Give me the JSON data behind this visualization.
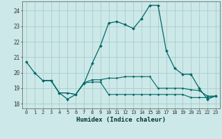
{
  "xlabel": "Humidex (Indice chaleur)",
  "ylabel": "",
  "background_color": "#cce8e8",
  "grid_color": "#aacccc",
  "line_color": "#006666",
  "xlim": [
    -0.5,
    23.5
  ],
  "ylim": [
    17.7,
    24.6
  ],
  "yticks": [
    18,
    19,
    20,
    21,
    22,
    23,
    24
  ],
  "xticks": [
    0,
    1,
    2,
    3,
    4,
    5,
    6,
    7,
    8,
    9,
    10,
    11,
    12,
    13,
    14,
    15,
    16,
    17,
    18,
    19,
    20,
    21,
    22,
    23
  ],
  "line1_x": [
    0,
    1,
    2,
    3,
    4,
    5,
    6,
    7,
    8,
    9,
    10,
    11,
    12,
    13,
    14,
    15,
    16,
    17,
    18,
    19,
    20,
    21,
    22,
    23
  ],
  "line1_y": [
    20.7,
    20.0,
    19.5,
    19.5,
    18.7,
    18.3,
    18.6,
    19.3,
    20.6,
    21.75,
    23.2,
    23.3,
    23.1,
    22.85,
    23.5,
    24.35,
    24.35,
    21.4,
    20.3,
    19.9,
    19.9,
    19.0,
    18.3,
    18.5
  ],
  "line2_x": [
    2,
    3,
    4,
    5,
    6,
    7,
    8,
    9,
    10,
    11,
    12,
    13,
    14,
    15,
    16,
    17,
    18,
    19,
    20,
    21,
    22,
    23
  ],
  "line2_y": [
    19.5,
    19.5,
    18.7,
    18.7,
    18.6,
    19.35,
    19.55,
    19.55,
    19.65,
    19.65,
    19.75,
    19.75,
    19.75,
    19.75,
    19.0,
    19.0,
    19.0,
    19.0,
    18.9,
    18.85,
    18.5,
    18.5
  ],
  "line3_x": [
    2,
    3,
    4,
    5,
    6,
    7,
    8,
    9,
    10,
    11,
    12,
    13,
    14,
    15,
    16,
    17,
    18,
    19,
    20,
    21,
    22,
    23
  ],
  "line3_y": [
    19.5,
    19.5,
    18.7,
    18.7,
    18.6,
    19.35,
    19.4,
    19.4,
    18.6,
    18.6,
    18.6,
    18.6,
    18.6,
    18.6,
    18.6,
    18.6,
    18.6,
    18.6,
    18.4,
    18.4,
    18.4,
    18.5
  ]
}
